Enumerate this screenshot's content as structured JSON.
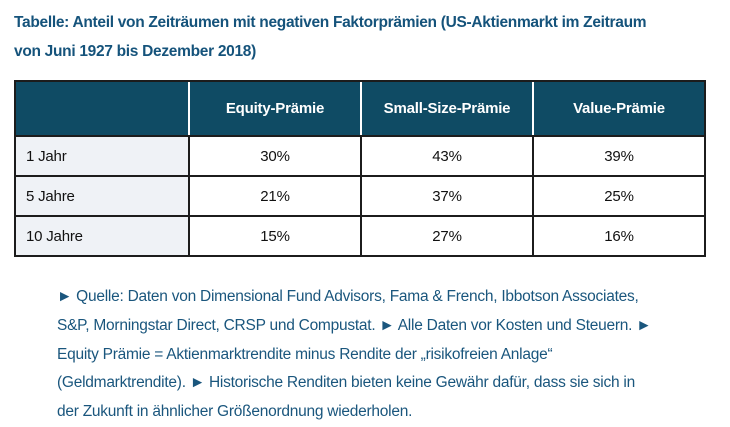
{
  "chart_data": {
    "type": "table",
    "title": "Tabelle: Anteil von Zeiträumen mit negativen Faktorprämien (US-Aktienmarkt im Zeitraum von Juni 1927 bis Dezember 2018)",
    "columns": [
      "",
      "Equity-Prämie",
      "Small-Size-Prämie",
      "Value-Prämie"
    ],
    "rows": [
      [
        "1 Jahr",
        "30%",
        "43%",
        "39%"
      ],
      [
        "5 Jahre",
        "21%",
        "37%",
        "25%"
      ],
      [
        "10 Jahre",
        "15%",
        "27%",
        "16%"
      ]
    ],
    "values_percent": {
      "categories": [
        "1 Jahr",
        "5 Jahre",
        "10 Jahre"
      ],
      "series": [
        {
          "name": "Equity-Prämie",
          "values": [
            30,
            21,
            15
          ]
        },
        {
          "name": "Small-Size-Prämie",
          "values": [
            43,
            37,
            27
          ]
        },
        {
          "name": "Value-Prämie",
          "values": [
            39,
            25,
            16
          ]
        }
      ]
    }
  },
  "title": {
    "line1": "Tabelle: Anteil von Zeiträumen mit negativen Faktorprämien (US-Aktienmarkt im Zeitraum",
    "line2": "von Juni 1927 bis Dezember 2018)"
  },
  "table": {
    "headers": [
      "",
      "Equity-Prämie",
      "Small-Size-Prämie",
      "Value-Prämie"
    ],
    "rows": [
      {
        "label": "1 Jahr",
        "equity": "30%",
        "small_size": "43%",
        "value": "39%"
      },
      {
        "label": "5 Jahre",
        "equity": "21%",
        "small_size": "37%",
        "value": "25%"
      },
      {
        "label": "10 Jahre",
        "equity": "15%",
        "small_size": "27%",
        "value": "16%"
      }
    ]
  },
  "footnote": {
    "lines": [
      "► Quelle: Daten von Dimensional Fund Advisors, Fama & French, Ibbotson Associates,",
      "S&P, Morningstar Direct, CRSP und Compustat. ► Alle Daten vor Kosten und Steuern. ►",
      "Equity Prämie = Aktienmarktrendite minus Rendite der „risikofreien Anlage“",
      "(Geldmarktrendite). ► Historische Renditen bieten keine Gewähr dafür, dass sie sich in",
      "der Zukunft in ähnlicher Größenordnung wiederholen."
    ]
  },
  "colors": {
    "header_bg": "#0f4b64",
    "title_text": "#15537b",
    "footnote_text": "#1a567d",
    "label_cell_bg": "#eff2f6",
    "border": "#1c1c1c"
  }
}
